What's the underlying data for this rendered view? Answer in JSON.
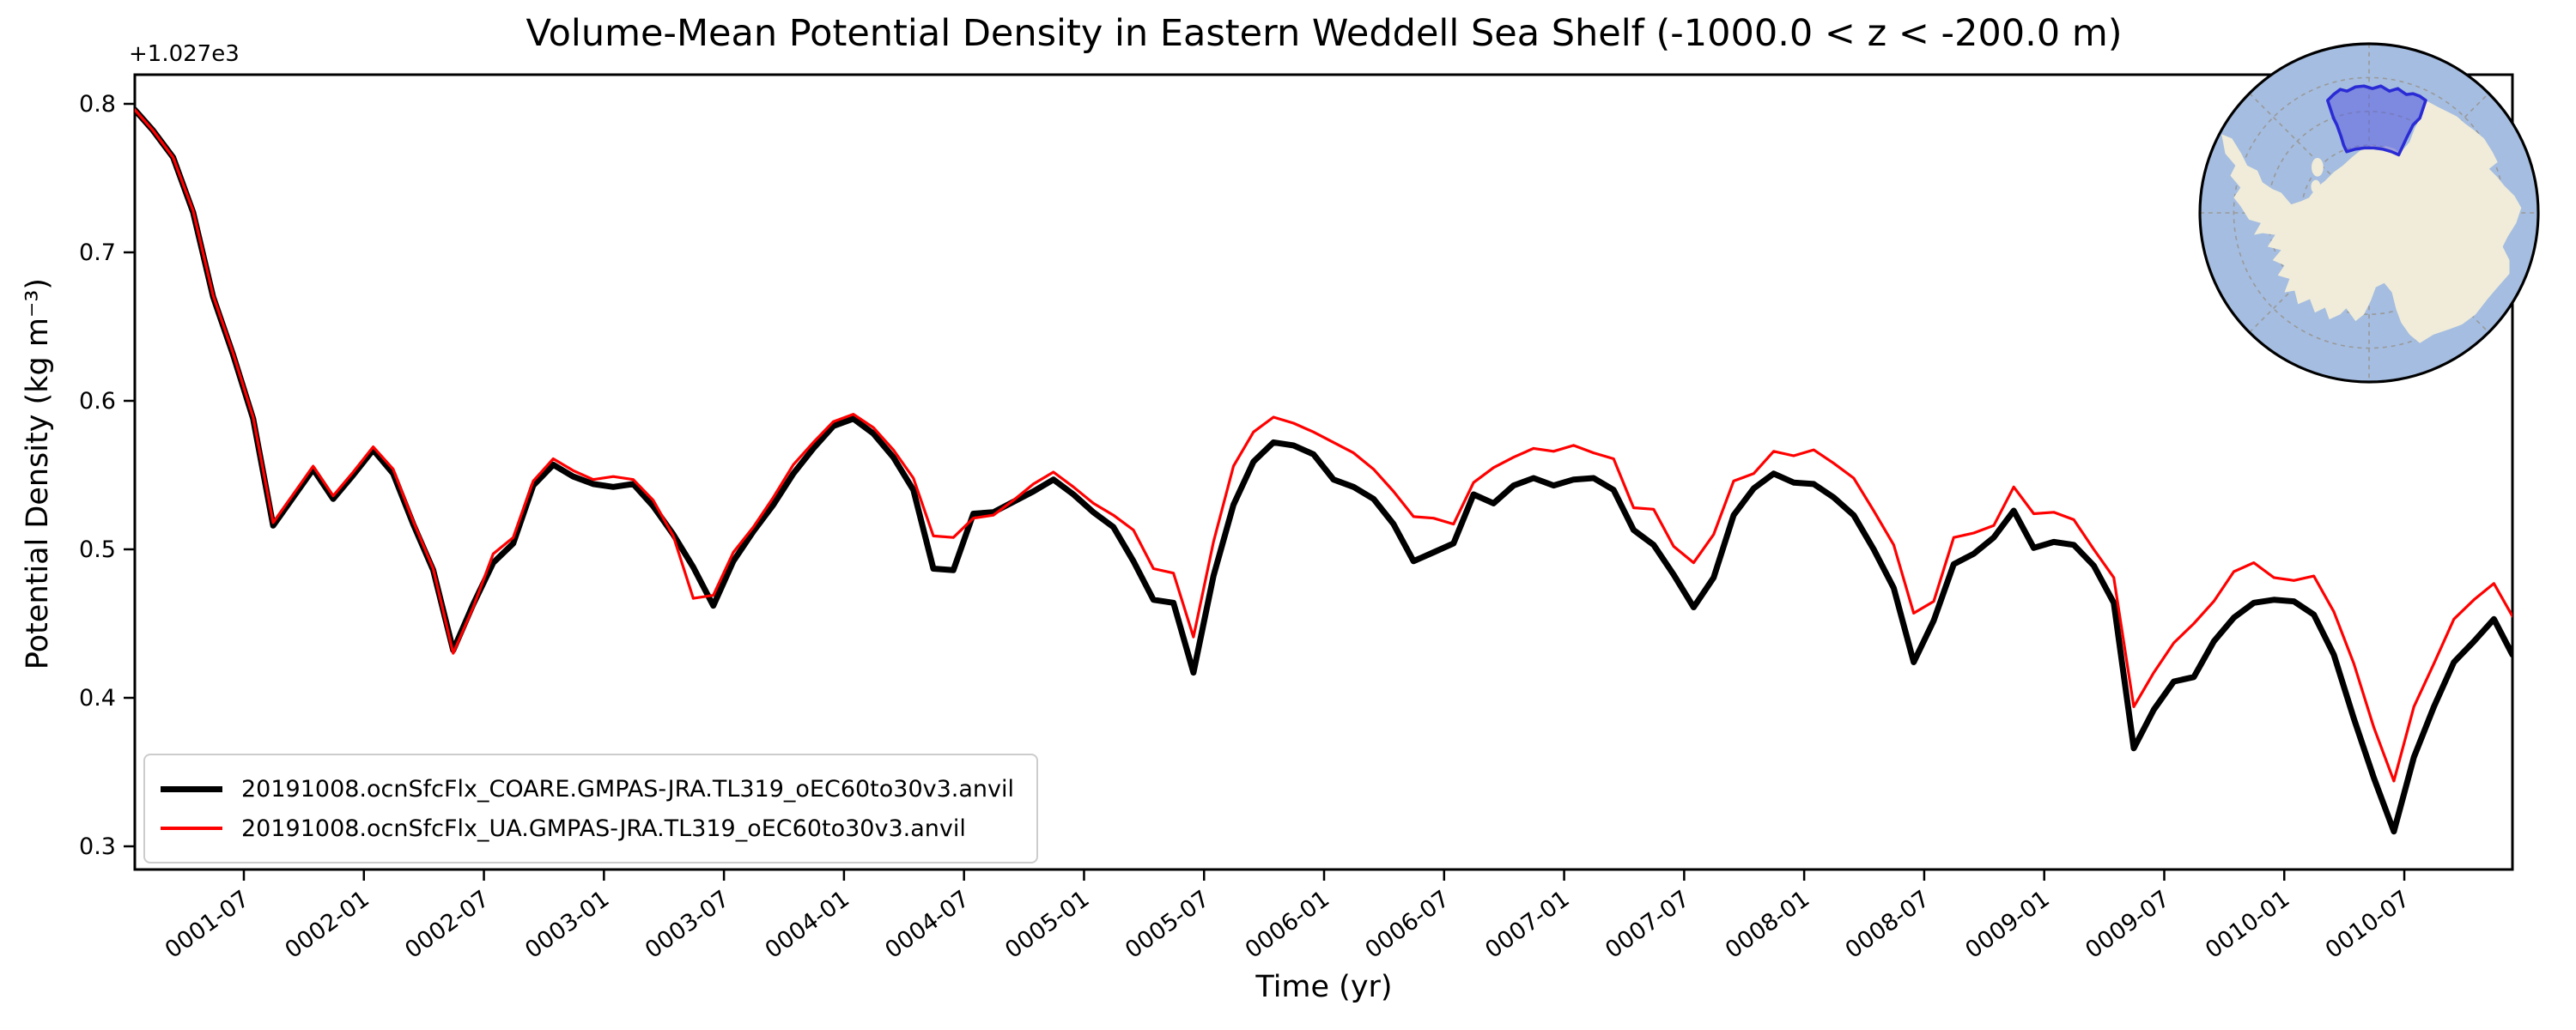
{
  "figure": {
    "title": "Volume-Mean Potential Density in Eastern Weddell Sea Shelf (-1000.0 < z < -200.0 m)",
    "xlabel": "Time (yr)",
    "ylabel": "Potential Density (kg m⁻³)",
    "y_offset_label": "+1.027e3"
  },
  "legend": {
    "entries": [
      {
        "label": "20191008.ocnSfcFlx_COARE.GMPAS-JRA.TL319_oEC60to30v3.anvil",
        "color": "#000000",
        "linewidth": 7
      },
      {
        "label": "20191008.ocnSfcFlx_UA.GMPAS-JRA.TL319_oEC60to30v3.anvil",
        "color": "#ff0000",
        "linewidth": 3.2
      }
    ]
  },
  "chart_data": {
    "type": "line",
    "title": "Volume-Mean Potential Density in Eastern Weddell Sea Shelf (-1000.0 < z < -200.0 m)",
    "xlabel": "Time (yr)",
    "ylabel": "Potential Density (kg m⁻³)",
    "y_offset": "+1.027e3",
    "y_offset_value": 1027,
    "x_start": "0001-01",
    "x_end": "0010-12",
    "points_per_month": 1,
    "ylim": [
      0.283,
      0.82
    ],
    "grid": false,
    "legend_position": "lower left",
    "x_tick_labels": [
      "0001-07",
      "0002-01",
      "0002-07",
      "0003-01",
      "0003-07",
      "0004-01",
      "0004-07",
      "0005-01",
      "0005-07",
      "0006-01",
      "0006-07",
      "0007-01",
      "0007-07",
      "0008-01",
      "0008-07",
      "0009-01",
      "0009-07",
      "0010-01",
      "0010-07"
    ],
    "y_tick_labels": [
      "0.3",
      "0.4",
      "0.5",
      "0.6",
      "0.7",
      "0.8"
    ],
    "series": [
      {
        "name": "20191008.ocnSfcFlx_COARE.GMPAS-JRA.TL319_oEC60to30v3.anvil",
        "color": "#000000",
        "linewidth": 7,
        "values": [
          0.796,
          0.782,
          0.764,
          0.727,
          0.67,
          0.631,
          0.588,
          0.516,
          0.535,
          0.554,
          0.534,
          0.55,
          0.567,
          0.551,
          0.517,
          0.486,
          0.432,
          0.463,
          0.491,
          0.504,
          0.543,
          0.557,
          0.549,
          0.544,
          0.542,
          0.544,
          0.529,
          0.51,
          0.488,
          0.462,
          0.492,
          0.512,
          0.53,
          0.551,
          0.568,
          0.583,
          0.588,
          0.578,
          0.562,
          0.54,
          0.487,
          0.486,
          0.524,
          0.525,
          0.532,
          0.539,
          0.547,
          0.537,
          0.525,
          0.515,
          0.492,
          0.466,
          0.464,
          0.417,
          0.482,
          0.53,
          0.559,
          0.572,
          0.57,
          0.564,
          0.547,
          0.542,
          0.534,
          0.517,
          0.492,
          0.498,
          0.504,
          0.537,
          0.531,
          0.543,
          0.548,
          0.543,
          0.547,
          0.548,
          0.54,
          0.513,
          0.503,
          0.483,
          0.461,
          0.481,
          0.523,
          0.541,
          0.551,
          0.545,
          0.544,
          0.535,
          0.523,
          0.5,
          0.474,
          0.424,
          0.452,
          0.49,
          0.497,
          0.508,
          0.526,
          0.501,
          0.505,
          0.503,
          0.489,
          0.464,
          0.366,
          0.392,
          0.411,
          0.414,
          0.438,
          0.454,
          0.464,
          0.466,
          0.465,
          0.456,
          0.429,
          0.386,
          0.346,
          0.31,
          0.36,
          0.394,
          0.424,
          0.438,
          0.453,
          0.429
        ]
      },
      {
        "name": "20191008.ocnSfcFlx_UA.GMPAS-JRA.TL319_oEC60to30v3.anvil",
        "color": "#ff0000",
        "linewidth": 3.2,
        "values": [
          0.796,
          0.782,
          0.764,
          0.728,
          0.671,
          0.632,
          0.589,
          0.518,
          0.537,
          0.556,
          0.536,
          0.552,
          0.569,
          0.554,
          0.519,
          0.487,
          0.43,
          0.461,
          0.497,
          0.508,
          0.546,
          0.561,
          0.553,
          0.547,
          0.549,
          0.547,
          0.533,
          0.509,
          0.467,
          0.469,
          0.498,
          0.515,
          0.535,
          0.557,
          0.572,
          0.586,
          0.591,
          0.582,
          0.567,
          0.548,
          0.509,
          0.508,
          0.521,
          0.523,
          0.533,
          0.544,
          0.552,
          0.542,
          0.531,
          0.523,
          0.513,
          0.487,
          0.484,
          0.441,
          0.505,
          0.556,
          0.579,
          0.589,
          0.585,
          0.579,
          0.572,
          0.565,
          0.554,
          0.539,
          0.522,
          0.521,
          0.517,
          0.545,
          0.555,
          0.562,
          0.568,
          0.566,
          0.57,
          0.565,
          0.561,
          0.528,
          0.527,
          0.502,
          0.491,
          0.51,
          0.546,
          0.551,
          0.566,
          0.563,
          0.567,
          0.558,
          0.548,
          0.526,
          0.503,
          0.457,
          0.465,
          0.508,
          0.511,
          0.516,
          0.542,
          0.524,
          0.525,
          0.52,
          0.5,
          0.481,
          0.394,
          0.417,
          0.437,
          0.45,
          0.465,
          0.485,
          0.491,
          0.481,
          0.479,
          0.482,
          0.458,
          0.423,
          0.38,
          0.344,
          0.394,
          0.423,
          0.453,
          0.466,
          0.477,
          0.455
        ]
      }
    ]
  },
  "inset_map": {
    "description": "south-polar view of Antarctica with Eastern Weddell Sea Shelf region highlighted",
    "ocean_color": "#a5bde0",
    "land_color": "#f0ecd9",
    "region_fill": "#5c60de",
    "region_fill_opacity": 0.55,
    "region_stroke": "#2b2bd5",
    "graticule_color": "#999999",
    "outline_color": "#000000"
  }
}
